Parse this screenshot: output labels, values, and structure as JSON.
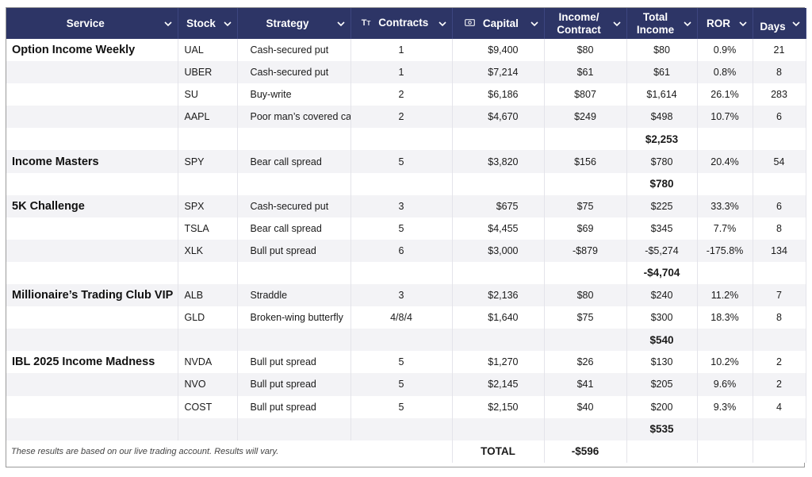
{
  "headers": {
    "service": "Service",
    "stock": "Stock",
    "strategy": "Strategy",
    "contracts": "Contracts",
    "capital": "Capital",
    "income_contract_1": "Income/",
    "income_contract_2": "Contract",
    "total_income_1": "Total",
    "total_income_2": "Income",
    "ror": "ROR",
    "days": "Days"
  },
  "icons": {
    "contracts_type_icon": "text-format-icon",
    "capital_type_icon": "money-icon",
    "dropdown_icon": "chevron-down-icon"
  },
  "colors": {
    "header_bg": "#2d3566",
    "header_text": "#ffffff",
    "band_row": "#f3f3f6",
    "comment_flag": "#d93025"
  },
  "rows": [
    {
      "service": "Option Income Weekly",
      "stock": "UAL",
      "strategy": "Cash-secured put",
      "contracts": "1",
      "capital": "$9,400",
      "income_contract": "$80",
      "total_income": "$80",
      "ror": "0.9%",
      "days": "21"
    },
    {
      "service": "",
      "stock": "UBER",
      "strategy": "Cash-secured put",
      "contracts": "1",
      "capital": "$7,214",
      "income_contract": "$61",
      "total_income": "$61",
      "ror": "0.8%",
      "days": "8"
    },
    {
      "service": "",
      "stock": "SU",
      "strategy": "Buy-write",
      "contracts": "2",
      "capital": "$6,186",
      "income_contract": "$807",
      "total_income": "$1,614",
      "ror": "26.1%",
      "days": "283"
    },
    {
      "service": "",
      "stock": "AAPL",
      "strategy": "Poor man’s covered call",
      "contracts": "2",
      "capital": "$4,670",
      "income_contract": "$249",
      "total_income": "$498",
      "ror": "10.7%",
      "days": "6"
    },
    {
      "subtotal": "$2,253"
    },
    {
      "service": "Income Masters",
      "stock": "SPY",
      "strategy": "Bear call spread",
      "contracts": "5",
      "capital": "$3,820",
      "income_contract": "$156",
      "total_income": "$780",
      "ror": "20.4%",
      "days": "54"
    },
    {
      "subtotal": "$780"
    },
    {
      "service": "5K Challenge",
      "stock": "SPX",
      "strategy": "Cash-secured put",
      "contracts": "3",
      "capital": "$675",
      "income_contract": "$75",
      "total_income": "$225",
      "ror": "33.3%",
      "days": "6"
    },
    {
      "service": "",
      "stock": "TSLA",
      "strategy": "Bear call spread",
      "contracts": "5",
      "capital": "$4,455",
      "income_contract": "$69",
      "total_income": "$345",
      "ror": "7.7%",
      "days": "8"
    },
    {
      "service": "",
      "stock": "XLK",
      "strategy": "Bull put spread",
      "contracts": "6",
      "capital": "$3,000",
      "income_contract": "-$879",
      "total_income": "-$5,274",
      "ror": "-175.8%",
      "days": "134"
    },
    {
      "subtotal": "-$4,704"
    },
    {
      "service": "Millionaire’s Trading Club VIP",
      "stock": "ALB",
      "strategy": "Straddle",
      "contracts": "3",
      "capital": "$2,136",
      "income_contract": "$80",
      "total_income": "$240",
      "ror": "11.2%",
      "days": "7"
    },
    {
      "service": "",
      "stock": "GLD",
      "strategy": "Broken-wing butterfly",
      "contracts": "4/8/4",
      "capital": "$1,640",
      "income_contract": "$75",
      "total_income": "$300",
      "ror": "18.3%",
      "days": "8"
    },
    {
      "subtotal": "$540"
    },
    {
      "service": "IBL 2025 Income Madness",
      "stock": "NVDA",
      "strategy": "Bull put spread",
      "contracts": "5",
      "capital": "$1,270",
      "income_contract": "$26",
      "total_income": "$130",
      "ror": "10.2%",
      "days": "2"
    },
    {
      "service": "",
      "stock": "NVO",
      "strategy": "Bull put spread",
      "contracts": "5",
      "capital": "$2,145",
      "income_contract": "$41",
      "total_income": "$205",
      "ror": "9.6%",
      "days": "2"
    },
    {
      "service": "",
      "stock": "COST",
      "strategy": "Bull put spread",
      "contracts": "5",
      "capital": "$2,150",
      "income_contract": "$40",
      "total_income": "$200",
      "ror": "9.3%",
      "days": "4"
    },
    {
      "subtotal": "$535"
    }
  ],
  "footer": {
    "disclaimer": "These results are based on our live trading account. Results will vary.",
    "total_label": "TOTAL",
    "total_value": "-$596"
  }
}
